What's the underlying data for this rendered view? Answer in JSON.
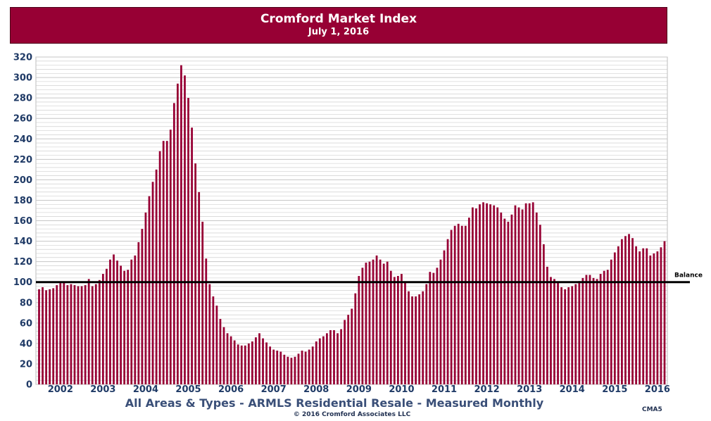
{
  "title": "Cromford Market Index",
  "subtitle": "July 1, 2016",
  "caption": "All Areas & Types - ARMLS Residential Resale - Measured Monthly",
  "copyright": "© 2016 Cromford Associates LLC",
  "code": "CMA5",
  "colors": {
    "bar": "#970034",
    "banner": "#970034",
    "grid": "#c6c6c6",
    "balance_line": "#000000",
    "tick_text": "#1f3a66"
  },
  "chart_data": {
    "type": "bar",
    "title": "Cromford Market Index",
    "subtitle": "July 1, 2016",
    "xlabel": "",
    "ylabel": "",
    "ylim": [
      0,
      320
    ],
    "yticks": [
      0,
      20,
      40,
      60,
      80,
      100,
      120,
      140,
      160,
      180,
      200,
      220,
      240,
      260,
      280,
      300,
      320
    ],
    "grid": true,
    "x_tick_labels": [
      "2002",
      "2003",
      "2004",
      "2005",
      "2006",
      "2007",
      "2008",
      "2009",
      "2010",
      "2011",
      "2012",
      "2013",
      "2014",
      "2015",
      "2016"
    ],
    "reference_line": {
      "label": "Balance",
      "value": 100
    },
    "series": [
      {
        "values": [
          93,
          95,
          92,
          93,
          94,
          97,
          99,
          100,
          97,
          98,
          97,
          96,
          96,
          97,
          103,
          96,
          98,
          102,
          108,
          113,
          122,
          127,
          121,
          116,
          111,
          112,
          122,
          126,
          139,
          152,
          168,
          184,
          198,
          210,
          228,
          238,
          238,
          249,
          275,
          294,
          312,
          302,
          280,
          251,
          216,
          188,
          159,
          123,
          98,
          86,
          77,
          64,
          56,
          50,
          47,
          43,
          39,
          38,
          38,
          40,
          42,
          46,
          50,
          45,
          41,
          37,
          34,
          33,
          32,
          29,
          27,
          26,
          27,
          30,
          33,
          32,
          34,
          37,
          42,
          45,
          47,
          50,
          53,
          53,
          50,
          54,
          63,
          68,
          74,
          89,
          106,
          114,
          119,
          120,
          122,
          126,
          122,
          118,
          120,
          111,
          105,
          106,
          108,
          100,
          91,
          86,
          86,
          88,
          91,
          98,
          110,
          109,
          114,
          122,
          131,
          142,
          151,
          155,
          157,
          155,
          155,
          163,
          173,
          172,
          176,
          178,
          177,
          176,
          175,
          173,
          168,
          162,
          159,
          166,
          175,
          173,
          171,
          177,
          177,
          178,
          168,
          156,
          137,
          115,
          105,
          103,
          100,
          95,
          93,
          95,
          96,
          98,
          101,
          104,
          107,
          107,
          104,
          103,
          108,
          111,
          112,
          122,
          129,
          135,
          142,
          145,
          147,
          143,
          135,
          130,
          133,
          133,
          126,
          128,
          130,
          134,
          140
        ]
      }
    ]
  }
}
